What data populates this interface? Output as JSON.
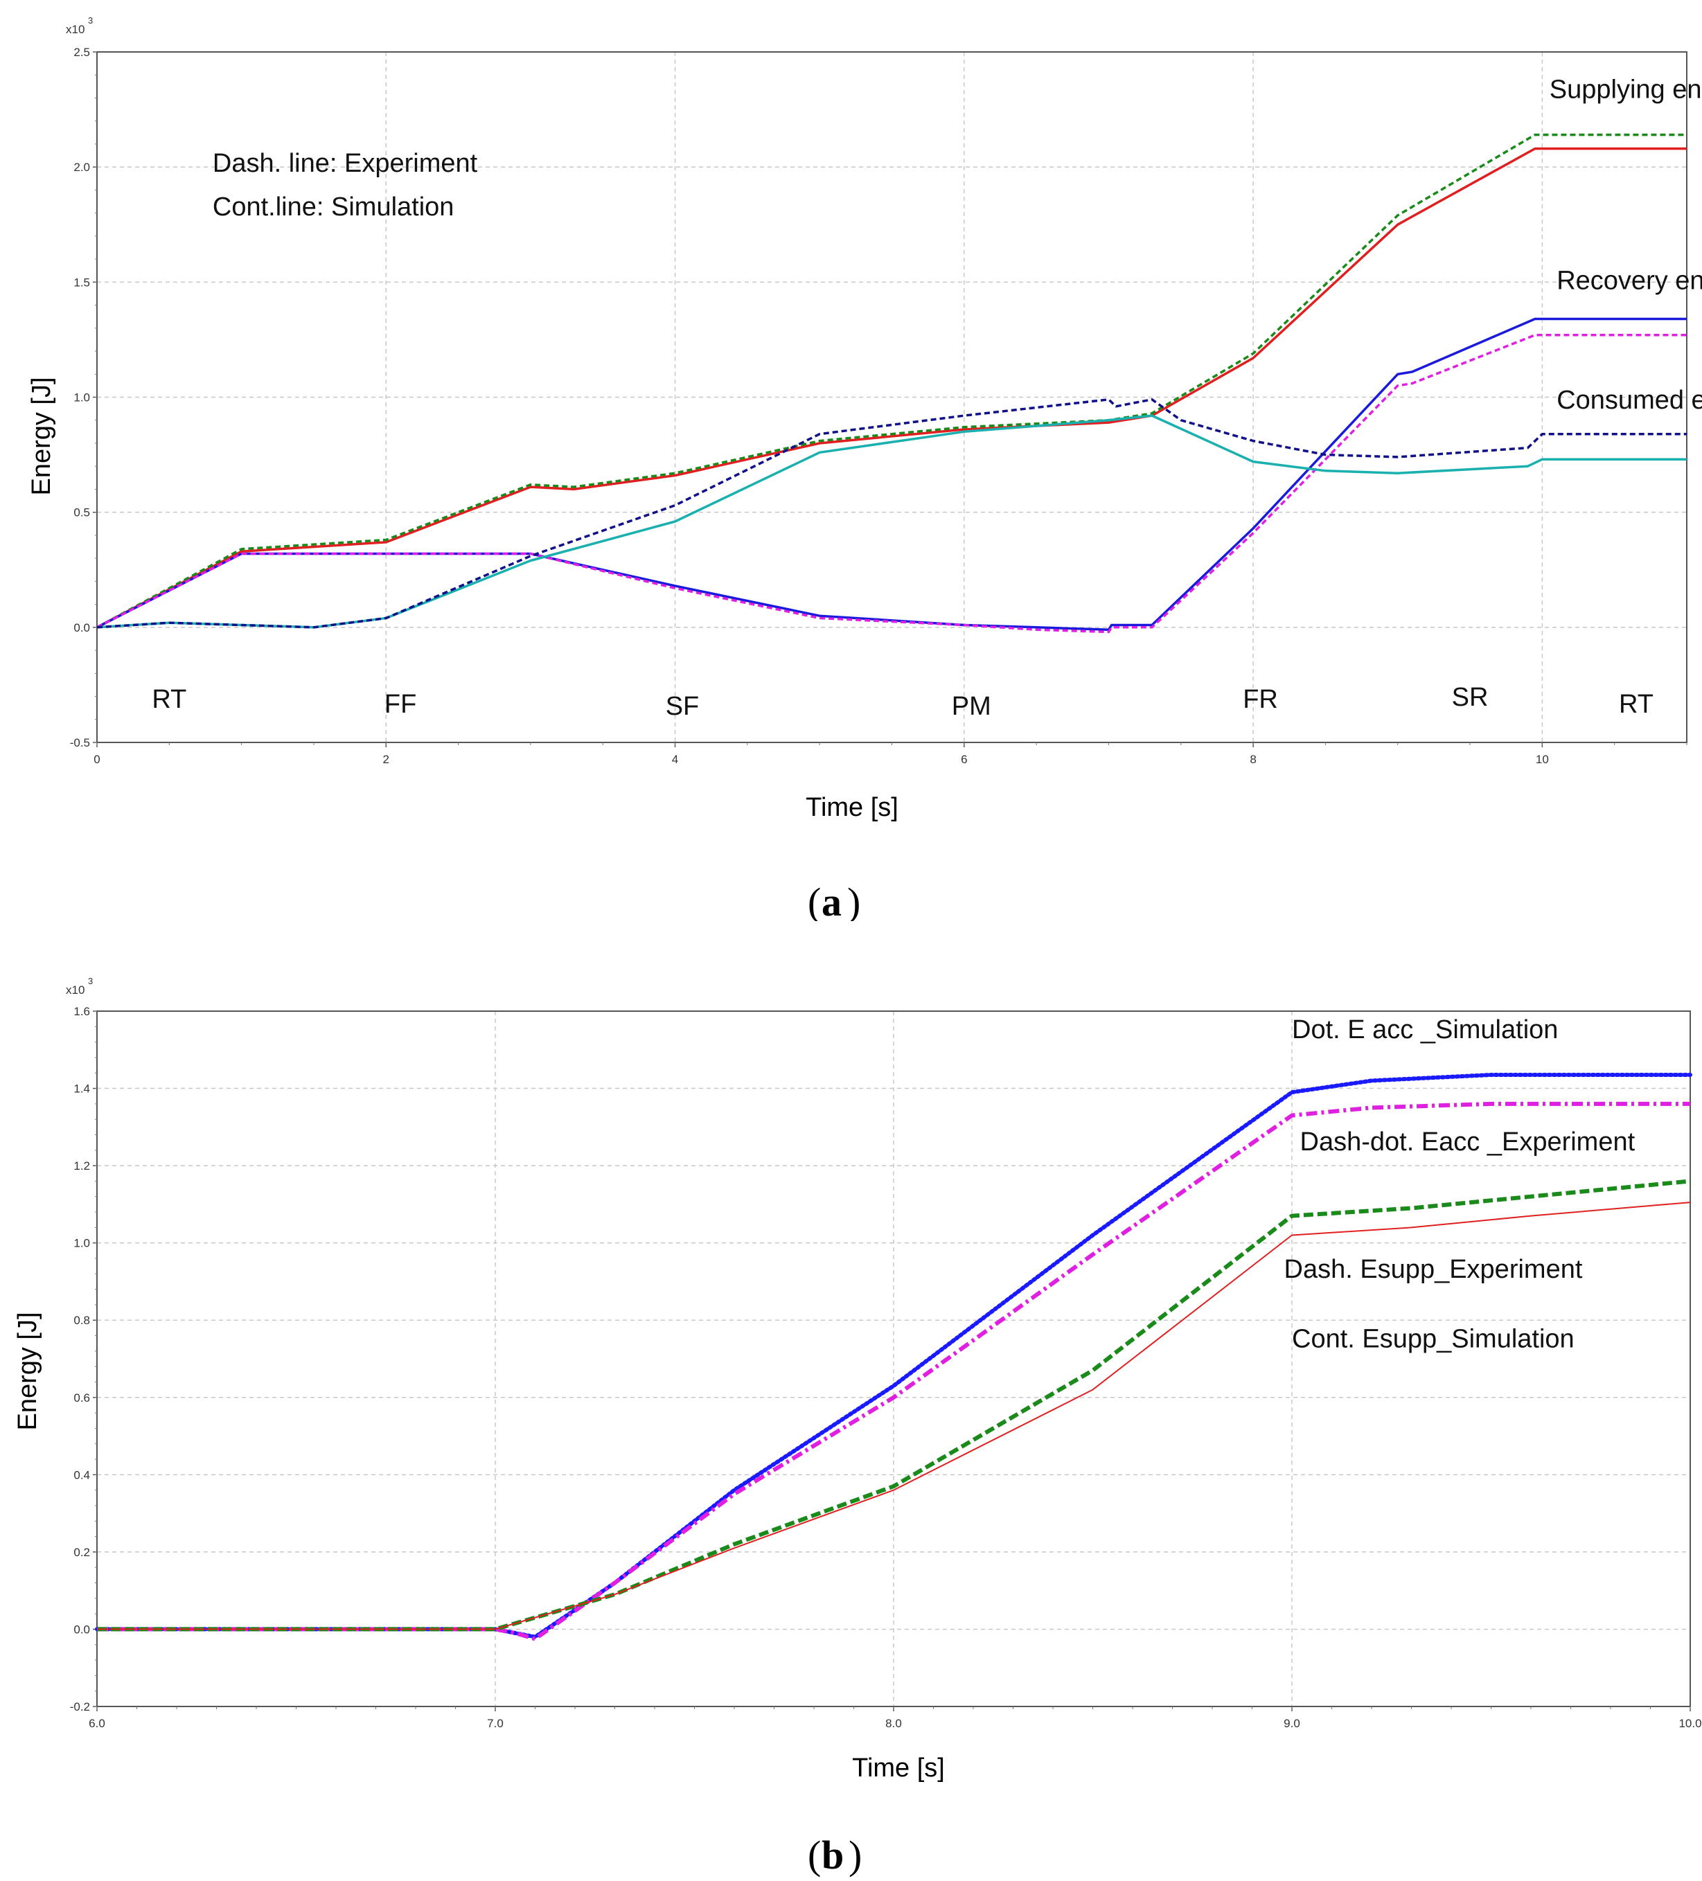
{
  "panels": {
    "a": {
      "label": "a"
    },
    "b": {
      "label": "b"
    }
  },
  "chart_data": [
    {
      "type": "line",
      "panel": "a",
      "xlabel": "Time [s]",
      "ylabel": "Energy [J]",
      "y_multiplier": "x10",
      "y_multiplier_exp": "3",
      "xlim": [
        0,
        11
      ],
      "ylim": [
        -0.5,
        2.5
      ],
      "x_ticks": [
        "0",
        "2",
        "4",
        "6",
        "8",
        "10"
      ],
      "x_tick_values": [
        0,
        2,
        4,
        6,
        8,
        10
      ],
      "y_ticks": [
        "-0.5",
        "0.0",
        "0.5",
        "1.0",
        "1.5",
        "2.0",
        "2.5"
      ],
      "y_tick_values": [
        -0.5,
        0.0,
        0.5,
        1.0,
        1.5,
        2.0,
        2.5
      ],
      "grid": true,
      "annotations": [
        {
          "text": "Supplying energy",
          "x": 10.05,
          "y": 2.3
        },
        {
          "text": "Recovery energy",
          "x": 10.1,
          "y": 1.47
        },
        {
          "text": "Consumed energy",
          "x": 10.1,
          "y": 0.95
        },
        {
          "text": "Dash. line: Experiment",
          "x": 0.8,
          "y": 1.98
        },
        {
          "text": "Cont.line: Simulation",
          "x": 0.8,
          "y": 1.79
        }
      ],
      "phase_labels": [
        {
          "text": "RT",
          "x": 0.5,
          "y": -0.35
        },
        {
          "text": "FF",
          "x": 2.1,
          "y": -0.37
        },
        {
          "text": "SF",
          "x": 4.05,
          "y": -0.38
        },
        {
          "text": "PM",
          "x": 6.05,
          "y": -0.38
        },
        {
          "text": "FR",
          "x": 8.05,
          "y": -0.35
        },
        {
          "text": "SR",
          "x": 9.5,
          "y": -0.34
        },
        {
          "text": "RT",
          "x": 10.65,
          "y": -0.37
        }
      ],
      "series": [
        {
          "color": "#e02020",
          "dash": "solid",
          "x": [
            0,
            1,
            2,
            3,
            3.3,
            4,
            5,
            6,
            7,
            7.3,
            8,
            9,
            9.95,
            11
          ],
          "y": [
            0,
            0.33,
            0.37,
            0.61,
            0.6,
            0.66,
            0.8,
            0.86,
            0.89,
            0.92,
            1.17,
            1.75,
            2.08,
            2.08
          ]
        },
        {
          "color": "#1a8a1a",
          "dash": "dashed",
          "x": [
            0,
            1,
            2,
            3,
            3.3,
            4,
            5,
            6,
            7,
            7.3,
            8,
            9,
            9.95,
            11
          ],
          "y": [
            0,
            0.34,
            0.38,
            0.62,
            0.61,
            0.67,
            0.81,
            0.87,
            0.9,
            0.93,
            1.19,
            1.79,
            2.14,
            2.14
          ]
        },
        {
          "color": "#1a1adc",
          "dash": "solid",
          "x": [
            0,
            1,
            3,
            4,
            5,
            6,
            6.5,
            7,
            7.02,
            7.3,
            8,
            9,
            9.1,
            9.95,
            11
          ],
          "y": [
            0,
            0.32,
            0.32,
            0.18,
            0.05,
            0.01,
            0.0,
            -0.01,
            0.01,
            0.01,
            0.43,
            1.1,
            1.11,
            1.34,
            1.34
          ]
        },
        {
          "color": "#e020e0",
          "dash": "dashed",
          "x": [
            0,
            1,
            3,
            4,
            5,
            6,
            6.5,
            7,
            7.02,
            7.3,
            8,
            9,
            9.1,
            9.95,
            11
          ],
          "y": [
            0,
            0.32,
            0.32,
            0.17,
            0.04,
            0.01,
            -0.01,
            -0.02,
            0.0,
            0.0,
            0.41,
            1.05,
            1.06,
            1.27,
            1.27
          ]
        },
        {
          "color": "#1ab0b0",
          "dash": "solid",
          "x": [
            0,
            0.5,
            1,
            1.5,
            2,
            3,
            4,
            5,
            6,
            7,
            7.3,
            8,
            8.5,
            9,
            9.9,
            10,
            11
          ],
          "y": [
            0,
            0.02,
            0.01,
            0.0,
            0.04,
            0.29,
            0.46,
            0.76,
            0.85,
            0.9,
            0.92,
            0.72,
            0.68,
            0.67,
            0.7,
            0.73,
            0.73
          ]
        },
        {
          "color": "#10108a",
          "dash": "dashed",
          "x": [
            0,
            0.5,
            1,
            1.5,
            2,
            3,
            4,
            5,
            6,
            7,
            7.05,
            7.3,
            7.5,
            8,
            8.5,
            9,
            9.9,
            10,
            11
          ],
          "y": [
            0,
            0.02,
            0.01,
            0.0,
            0.04,
            0.31,
            0.53,
            0.84,
            0.92,
            0.99,
            0.96,
            0.99,
            0.9,
            0.81,
            0.75,
            0.74,
            0.78,
            0.84,
            0.84
          ]
        }
      ]
    },
    {
      "type": "line",
      "panel": "b",
      "xlabel": "Time [s]",
      "ylabel": "Energy [J]",
      "y_multiplier": "x10",
      "y_multiplier_exp": "3",
      "xlim": [
        6.0,
        10.0
      ],
      "ylim": [
        -0.2,
        1.6
      ],
      "x_ticks": [
        "6.0",
        "7.0",
        "8.0",
        "9.0",
        "10.0"
      ],
      "x_tick_values": [
        6.0,
        7.0,
        8.0,
        9.0,
        10.0
      ],
      "y_ticks": [
        "-0.2",
        "0.0",
        "0.2",
        "0.4",
        "0.6",
        "0.8",
        "1.0",
        "1.2",
        "1.4",
        "1.6"
      ],
      "y_tick_values": [
        -0.2,
        0.0,
        0.2,
        0.4,
        0.6,
        0.8,
        1.0,
        1.2,
        1.4,
        1.6
      ],
      "grid": true,
      "annotations": [
        {
          "text": "Dot. E acc _Simulation",
          "x": 9.0,
          "y": 1.53
        },
        {
          "text": "Dash-dot. Eacc _Experiment",
          "x": 9.02,
          "y": 1.24
        },
        {
          "text": "Dash. Esupp_Experiment",
          "x": 8.98,
          "y": 0.91
        },
        {
          "text": "Cont. Esupp_Simulation",
          "x": 9.0,
          "y": 0.73
        }
      ],
      "series": [
        {
          "color": "#1a1aff",
          "dash": "dotted",
          "x": [
            6.0,
            7.0,
            7.05,
            7.1,
            7.3,
            7.6,
            8.0,
            8.5,
            9.0,
            9.2,
            9.5,
            10.0
          ],
          "y": [
            0.0,
            0.0,
            -0.01,
            -0.02,
            0.12,
            0.36,
            0.63,
            1.02,
            1.39,
            1.42,
            1.435,
            1.435
          ]
        },
        {
          "color": "#e020e0",
          "dash": "dashdot",
          "x": [
            6.0,
            7.0,
            7.05,
            7.1,
            7.3,
            7.6,
            8.0,
            8.5,
            9.0,
            9.2,
            9.5,
            10.0
          ],
          "y": [
            0.0,
            0.0,
            -0.01,
            -0.025,
            0.12,
            0.35,
            0.6,
            0.97,
            1.33,
            1.35,
            1.36,
            1.36
          ]
        },
        {
          "color": "#1a8a1a",
          "dash": "dashed",
          "x": [
            6.0,
            7.0,
            7.3,
            7.6,
            8.0,
            8.5,
            9.0,
            9.3,
            9.6,
            10.0
          ],
          "y": [
            0.0,
            0.0,
            0.09,
            0.22,
            0.37,
            0.67,
            1.07,
            1.09,
            1.12,
            1.16
          ]
        },
        {
          "color": "#e02020",
          "dash": "thin",
          "x": [
            6.0,
            7.0,
            7.3,
            7.6,
            8.0,
            8.5,
            9.0,
            9.3,
            9.6,
            10.0
          ],
          "y": [
            0.0,
            0.0,
            0.09,
            0.21,
            0.36,
            0.62,
            1.02,
            1.04,
            1.07,
            1.105
          ]
        }
      ]
    }
  ]
}
